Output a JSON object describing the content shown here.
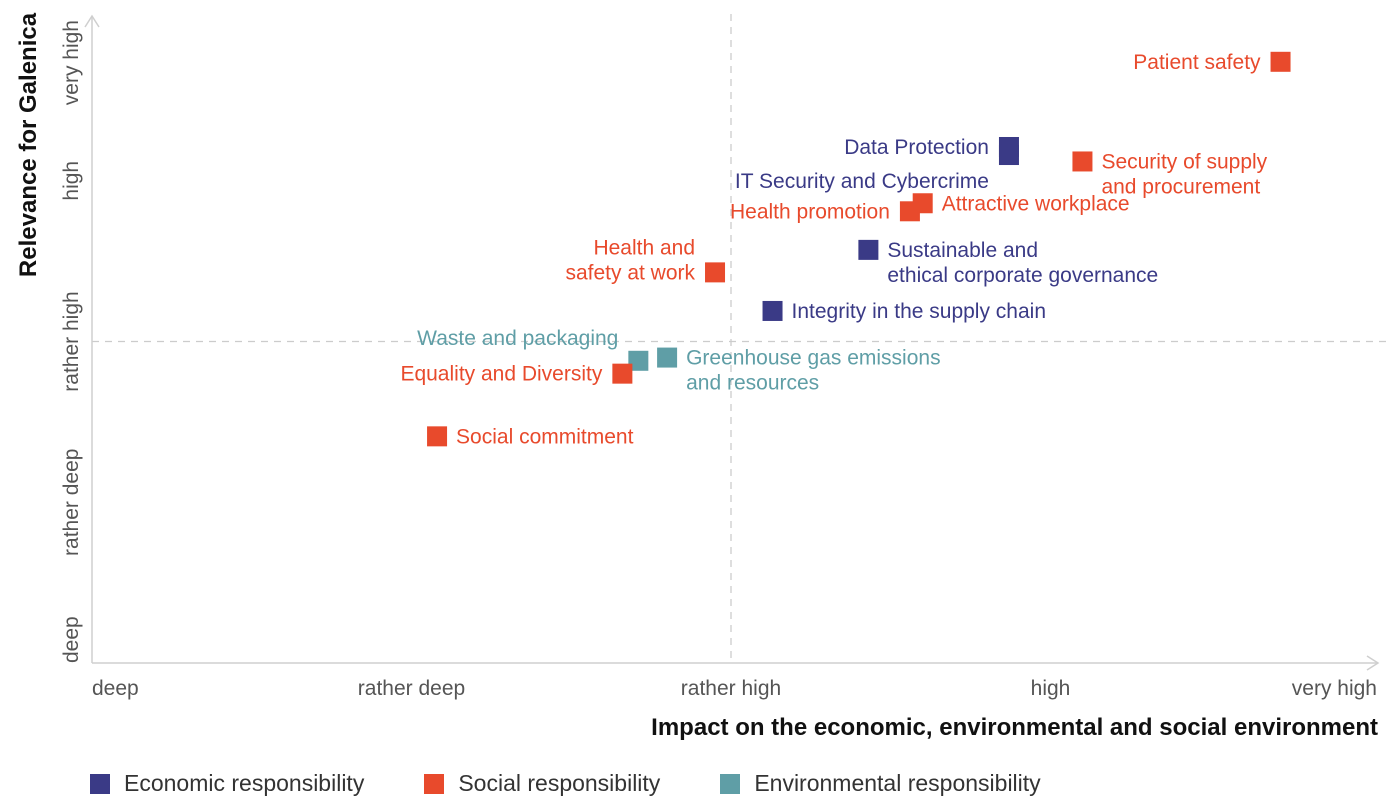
{
  "chart_data": {
    "type": "scatter",
    "title": "",
    "xlabel": "Impact on the economic, environmental and social environment",
    "ylabel": "Relevance for Galenica",
    "x_ticks": [
      "deep",
      "rather deep",
      "rather high",
      "high",
      "very high"
    ],
    "y_ticks": [
      "deep",
      "rather deep",
      "rather high",
      "high",
      "very high"
    ],
    "xlim": [
      0,
      4
    ],
    "ylim": [
      0,
      4
    ],
    "quadrant_divider": {
      "x": 2,
      "y": 2
    },
    "categories": [
      {
        "key": "economic",
        "name": "Economic responsibility",
        "color": "#3a3a86"
      },
      {
        "key": "social",
        "name": "Social responsibility",
        "color": "#e84a2c"
      },
      {
        "key": "environmental",
        "name": "Environmental responsibility",
        "color": "#5f9ea6"
      }
    ],
    "points": [
      {
        "lines": [
          "Patient safety"
        ],
        "category": "social",
        "x": 3.72,
        "y": 3.74
      },
      {
        "lines": [
          "Data Protection"
        ],
        "category": "economic",
        "x": 2.87,
        "y": 3.21
      },
      {
        "lines": [
          "IT Security and Cybercrime"
        ],
        "category": "economic",
        "x": 2.87,
        "y": 3.16
      },
      {
        "lines": [
          "Security of supply",
          "and procurement"
        ],
        "category": "social",
        "x": 3.1,
        "y": 3.12
      },
      {
        "lines": [
          "Attractive workplace"
        ],
        "category": "social",
        "x": 2.6,
        "y": 2.86
      },
      {
        "lines": [
          "Health promotion"
        ],
        "category": "social",
        "x": 2.56,
        "y": 2.81
      },
      {
        "lines": [
          "Sustainable and",
          "ethical corporate governance"
        ],
        "category": "economic",
        "x": 2.43,
        "y": 2.57
      },
      {
        "lines": [
          "Health and",
          "safety at work"
        ],
        "category": "social",
        "x": 1.95,
        "y": 2.43
      },
      {
        "lines": [
          "Integrity in the supply chain"
        ],
        "category": "economic",
        "x": 2.13,
        "y": 2.19
      },
      {
        "lines": [
          "Waste and packaging"
        ],
        "category": "environmental",
        "x": 1.71,
        "y": 1.88
      },
      {
        "lines": [
          "Greenhouse gas emissions",
          "and resources"
        ],
        "category": "environmental",
        "x": 1.8,
        "y": 1.9
      },
      {
        "lines": [
          "Equality and Diversity"
        ],
        "category": "social",
        "x": 1.66,
        "y": 1.8
      },
      {
        "lines": [
          "Social commitment"
        ],
        "category": "social",
        "x": 1.08,
        "y": 1.41
      }
    ]
  }
}
